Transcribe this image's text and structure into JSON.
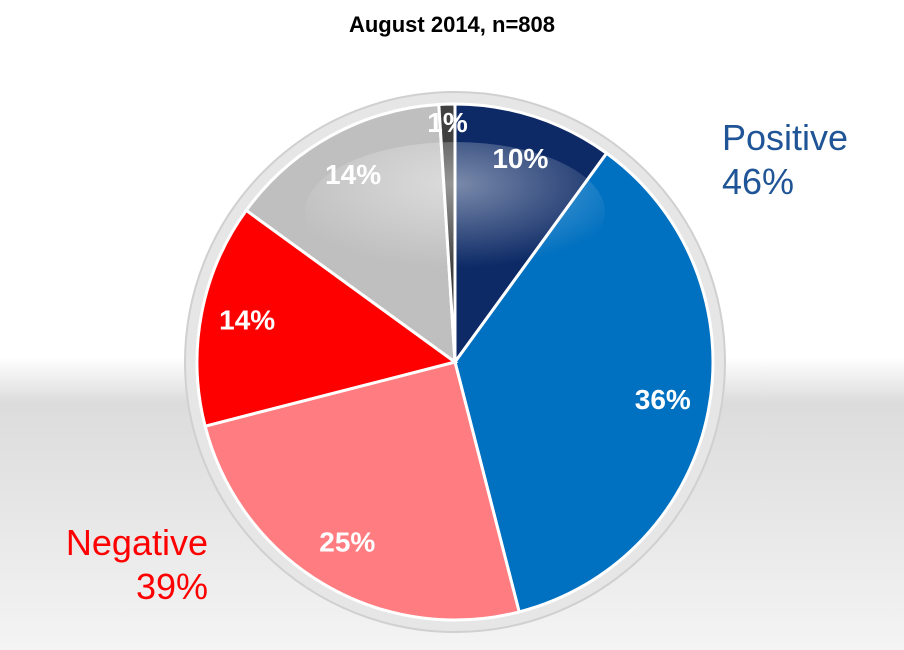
{
  "chart_data": {
    "type": "pie",
    "title": "August 2014, n=808",
    "categories": [
      null,
      null,
      null,
      null,
      null,
      null
    ],
    "values": [
      10,
      36,
      25,
      14,
      14,
      1
    ],
    "value_labels": [
      "10%",
      "36%",
      "25%",
      "14%",
      "14%",
      "1%"
    ],
    "colors": [
      "#0d2a66",
      "#0070c0",
      "#ff7c80",
      "#ff0000",
      "#bfbfbf",
      "#404040"
    ],
    "annotations": [
      {
        "lines": [
          "Positive",
          "46%"
        ],
        "color": "#1f5596"
      },
      {
        "lines": [
          "Negative",
          "39%"
        ],
        "color": "#ff0000"
      }
    ]
  }
}
